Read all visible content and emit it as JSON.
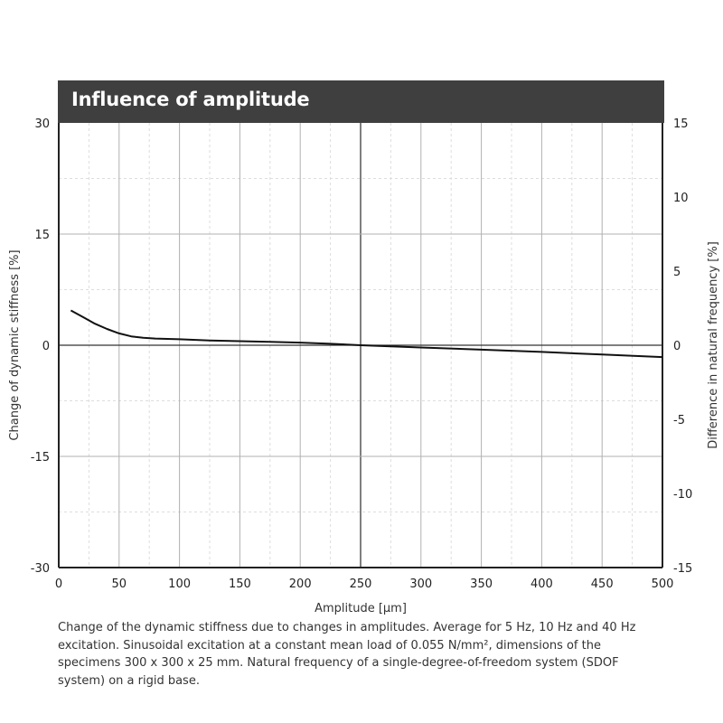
{
  "chart_data": {
    "type": "line",
    "title": "Influence of amplitude",
    "xlabel": "Amplitude [μm]",
    "ylabel": "Change of dynamic stiffness [%]",
    "ylabel_right": "Difference in natural frequency [%]",
    "xlim": [
      0,
      500
    ],
    "ylim": [
      -30,
      30
    ],
    "ylim_right": [
      -15,
      15
    ],
    "x_ticks": [
      0,
      50,
      100,
      150,
      200,
      250,
      300,
      350,
      400,
      450,
      500
    ],
    "y_ticks": [
      -30,
      -15,
      0,
      15,
      30
    ],
    "y_right_ticks": [
      -15,
      -10,
      -5,
      0,
      5,
      10,
      15
    ],
    "x_tick_labels": [
      "0",
      "50",
      "100",
      "150",
      "200",
      "250",
      "300",
      "350",
      "400",
      "450",
      "500"
    ],
    "y_tick_labels": [
      "-30",
      "-15",
      "0",
      "15",
      "30"
    ],
    "y_right_tick_labels": [
      "-15",
      "-10",
      "-5",
      "0",
      "5",
      "10",
      "15"
    ],
    "grid": true,
    "series": [
      {
        "x": [
          10,
          20,
          30,
          40,
          50,
          60,
          70,
          80,
          100,
          125,
          150,
          175,
          200,
          225,
          250,
          275,
          300,
          350,
          400,
          450,
          500
        ],
        "y": [
          4.7,
          3.8,
          2.9,
          2.2,
          1.6,
          1.2,
          1.0,
          0.9,
          0.8,
          0.65,
          0.55,
          0.45,
          0.35,
          0.2,
          0.0,
          -0.15,
          -0.3,
          -0.6,
          -0.9,
          -1.25,
          -1.6
        ],
        "color": "#111111"
      }
    ]
  },
  "caption": "Change of the dynamic stiffness due to changes in amplitudes. Average for 5 Hz, 10 Hz and 40 Hz excitation. Sinusoidal excitation at a constant mean load of 0.055 N/mm², dimensions of the specimens 300 x 300 x 25 mm. Natural frequency of a single-degree-of-freedom system (SDOF system) on a rigid base.",
  "colors": {
    "title_bar": "#3f3f3f",
    "major_grid": "#b0b0b0",
    "minor_grid": "#dddddd",
    "line": "#111111"
  }
}
